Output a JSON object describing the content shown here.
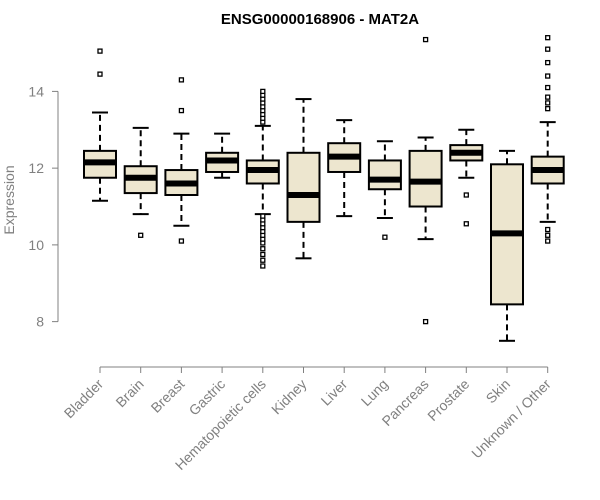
{
  "chart_data": {
    "type": "boxplot",
    "title": "ENSG00000168906 - MAT2A",
    "xlabel": "",
    "ylabel": "Expression",
    "ylim": [
      7.0,
      15.6
    ],
    "yticks": [
      8,
      10,
      12,
      14
    ],
    "box_fill": "#ede6cf",
    "box_stroke": "#000000",
    "axis_color": "#808080",
    "categories": [
      "Bladder",
      "Brain",
      "Breast",
      "Gastric",
      "Hematopoietic cells",
      "Kidney",
      "Liver",
      "Lung",
      "Pancreas",
      "Prostate",
      "Skin",
      "Unknown / Other"
    ],
    "boxes": [
      {
        "category": "Bladder",
        "q1": 11.75,
        "median": 12.15,
        "q3": 12.45,
        "whisker_low": 11.15,
        "whisker_high": 13.45,
        "outliers": [
          14.45,
          15.05
        ]
      },
      {
        "category": "Brain",
        "q1": 11.35,
        "median": 11.75,
        "q3": 12.05,
        "whisker_low": 10.8,
        "whisker_high": 13.05,
        "outliers": [
          10.25
        ]
      },
      {
        "category": "Breast",
        "q1": 11.3,
        "median": 11.6,
        "q3": 11.95,
        "whisker_low": 10.5,
        "whisker_high": 12.9,
        "outliers": [
          10.1,
          13.5,
          14.3
        ]
      },
      {
        "category": "Gastric",
        "q1": 11.9,
        "median": 12.2,
        "q3": 12.4,
        "whisker_low": 11.75,
        "whisker_high": 12.9,
        "outliers": []
      },
      {
        "category": "Hematopoietic cells",
        "q1": 11.6,
        "median": 11.95,
        "q3": 12.2,
        "whisker_low": 10.8,
        "whisker_high": 13.1,
        "outliers": [
          9.45,
          9.6,
          9.75,
          9.9,
          10.05,
          10.15,
          10.25,
          10.35,
          10.45,
          10.55,
          10.65,
          10.75,
          13.2,
          13.3,
          13.4,
          13.5,
          13.6,
          13.7,
          13.8,
          13.9,
          14.0
        ]
      },
      {
        "category": "Kidney",
        "q1": 10.6,
        "median": 11.3,
        "q3": 12.4,
        "whisker_low": 9.65,
        "whisker_high": 13.8,
        "outliers": []
      },
      {
        "category": "Liver",
        "q1": 11.9,
        "median": 12.3,
        "q3": 12.65,
        "whisker_low": 10.75,
        "whisker_high": 13.25,
        "outliers": []
      },
      {
        "category": "Lung",
        "q1": 11.45,
        "median": 11.7,
        "q3": 12.2,
        "whisker_low": 10.7,
        "whisker_high": 12.7,
        "outliers": [
          10.2
        ]
      },
      {
        "category": "Pancreas",
        "q1": 11.0,
        "median": 11.65,
        "q3": 12.45,
        "whisker_low": 10.15,
        "whisker_high": 12.8,
        "outliers": [
          8.0,
          15.35
        ]
      },
      {
        "category": "Prostate",
        "q1": 12.2,
        "median": 12.4,
        "q3": 12.6,
        "whisker_low": 11.75,
        "whisker_high": 13.0,
        "outliers": [
          10.55,
          11.3
        ]
      },
      {
        "category": "Skin",
        "q1": 8.45,
        "median": 10.3,
        "q3": 12.1,
        "whisker_low": 7.5,
        "whisker_high": 12.45,
        "outliers": []
      },
      {
        "category": "Unknown / Other",
        "q1": 11.6,
        "median": 11.95,
        "q3": 12.3,
        "whisker_low": 10.6,
        "whisker_high": 13.2,
        "outliers": [
          10.1,
          10.25,
          10.4,
          13.55,
          13.7,
          13.85,
          14.1,
          14.4,
          14.75,
          15.1,
          15.4
        ]
      }
    ]
  }
}
